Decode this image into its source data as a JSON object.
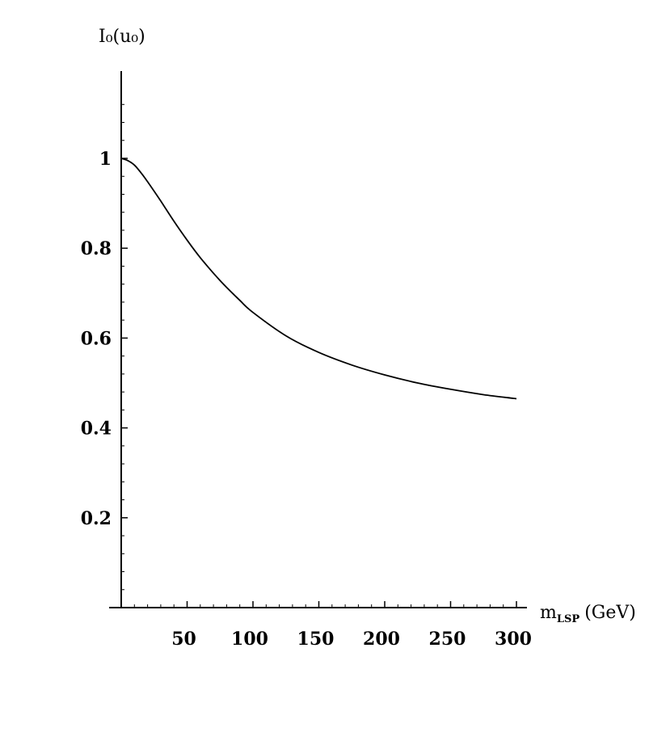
{
  "chart_data": {
    "type": "line",
    "ylabel": "I₀(u₀)",
    "xlabel_main": "m",
    "xlabel_sub": "LSP",
    "xlabel_unit": "(GeV)",
    "xlim": [
      0,
      300
    ],
    "ylim": [
      0,
      1.2
    ],
    "xticks": [
      50,
      100,
      150,
      200,
      250,
      300
    ],
    "xtick_labels": [
      "50",
      "100",
      "150",
      "200",
      "250",
      "300"
    ],
    "yticks": [
      0.2,
      0.4,
      0.6,
      0.8,
      1
    ],
    "ytick_labels": [
      "0.2",
      "0.4",
      "0.6",
      "0.8",
      "1"
    ],
    "grid": false,
    "series": [
      {
        "x": [
          0,
          5,
          10,
          15,
          20,
          30,
          40,
          50,
          60,
          75,
          90,
          100,
          125,
          150,
          175,
          200,
          225,
          250,
          275,
          300
        ],
        "y": [
          1.0,
          0.995,
          0.985,
          0.968,
          0.948,
          0.905,
          0.86,
          0.818,
          0.779,
          0.728,
          0.684,
          0.657,
          0.605,
          0.568,
          0.54,
          0.518,
          0.5,
          0.486,
          0.474,
          0.465
        ]
      }
    ]
  }
}
